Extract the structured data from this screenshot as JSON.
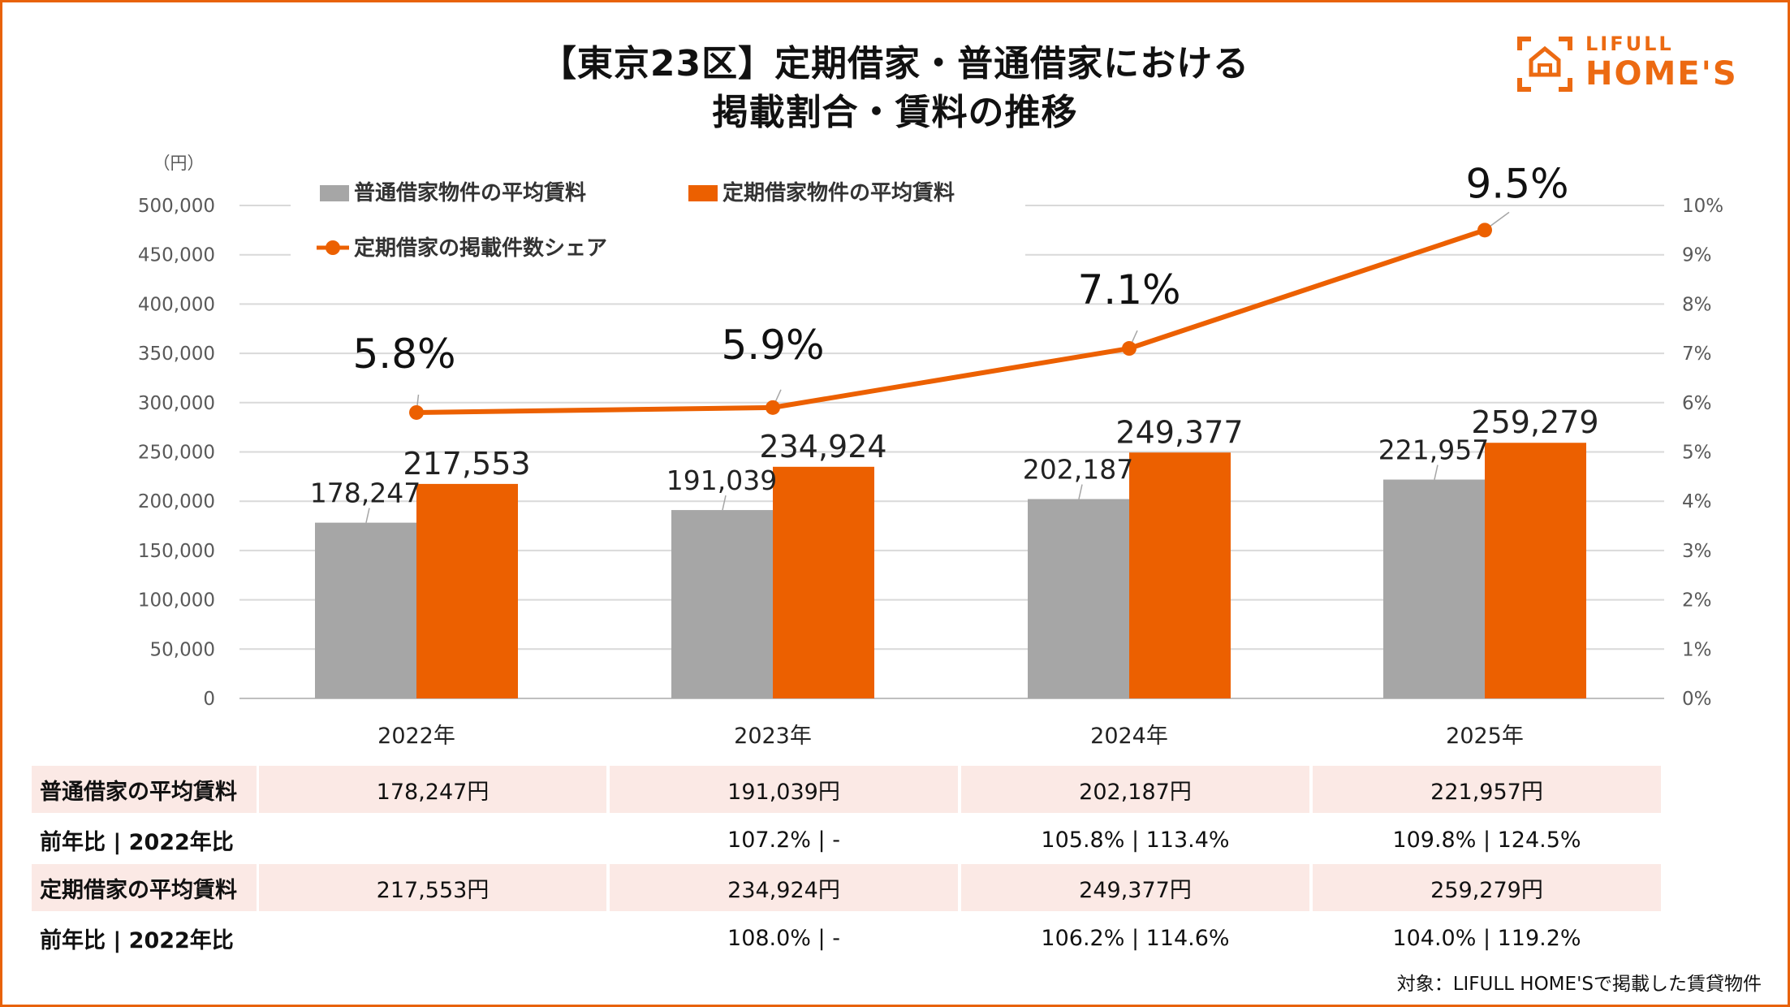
{
  "title": {
    "line1": "【東京23区】定期借家・普通借家における",
    "line2": "掲載割合・賃料の推移"
  },
  "logo": {
    "line1": "LIFULL",
    "line2": "HOME'S"
  },
  "chart_data": {
    "type": "bar+line",
    "categories": [
      "2022年",
      "2023年",
      "2024年",
      "2025年"
    ],
    "y_unit_label": "（円）",
    "ylim": [
      0,
      500000
    ],
    "y_ticks": [
      "0",
      "50,000",
      "100,000",
      "150,000",
      "200,000",
      "250,000",
      "300,000",
      "350,000",
      "400,000",
      "450,000",
      "500,000"
    ],
    "y2lim": [
      0,
      10
    ],
    "y2_ticks": [
      "0%",
      "1%",
      "2%",
      "3%",
      "4%",
      "5%",
      "6%",
      "7%",
      "8%",
      "9%",
      "10%"
    ],
    "series": [
      {
        "name": "普通借家物件の平均賃料",
        "type": "bar",
        "color": "#a6a6a6",
        "values": [
          178247,
          191039,
          202187,
          221957
        ],
        "labels": [
          "178,247",
          "191,039",
          "202,187",
          "221,957"
        ]
      },
      {
        "name": "定期借家物件の平均賃料",
        "type": "bar",
        "color": "#ec6000",
        "values": [
          217553,
          234924,
          249377,
          259279
        ],
        "labels": [
          "217,553",
          "234,924",
          "249,377",
          "259,279"
        ]
      },
      {
        "name": "定期借家の掲載件数シェア",
        "type": "line",
        "axis": "right",
        "color": "#ec6000",
        "values": [
          5.8,
          5.9,
          7.1,
          9.5
        ],
        "labels": [
          "5.8%",
          "5.9%",
          "7.1%",
          "9.5%"
        ]
      }
    ],
    "legend": "top-left",
    "grid": true
  },
  "table": {
    "rows": [
      {
        "label": "普通借家の平均賃料",
        "cells": [
          "178,247円",
          "191,039円",
          "202,187円",
          "221,957円"
        ],
        "shaded": true
      },
      {
        "label": "前年比 | 2022年比",
        "cells": [
          "",
          "107.2% | -",
          "105.8% | 113.4%",
          "109.8% | 124.5%"
        ],
        "shaded": false
      },
      {
        "label": "定期借家の平均賃料",
        "cells": [
          "217,553円",
          "234,924円",
          "249,377円",
          "259,279円"
        ],
        "shaded": true
      },
      {
        "label": "前年比 | 2022年比",
        "cells": [
          "",
          "108.0% | -",
          "106.2% | 114.6%",
          "104.0% | 119.2%"
        ],
        "shaded": false
      }
    ]
  },
  "footnote": "対象：LIFULL HOME'Sで掲載した賃貸物件"
}
